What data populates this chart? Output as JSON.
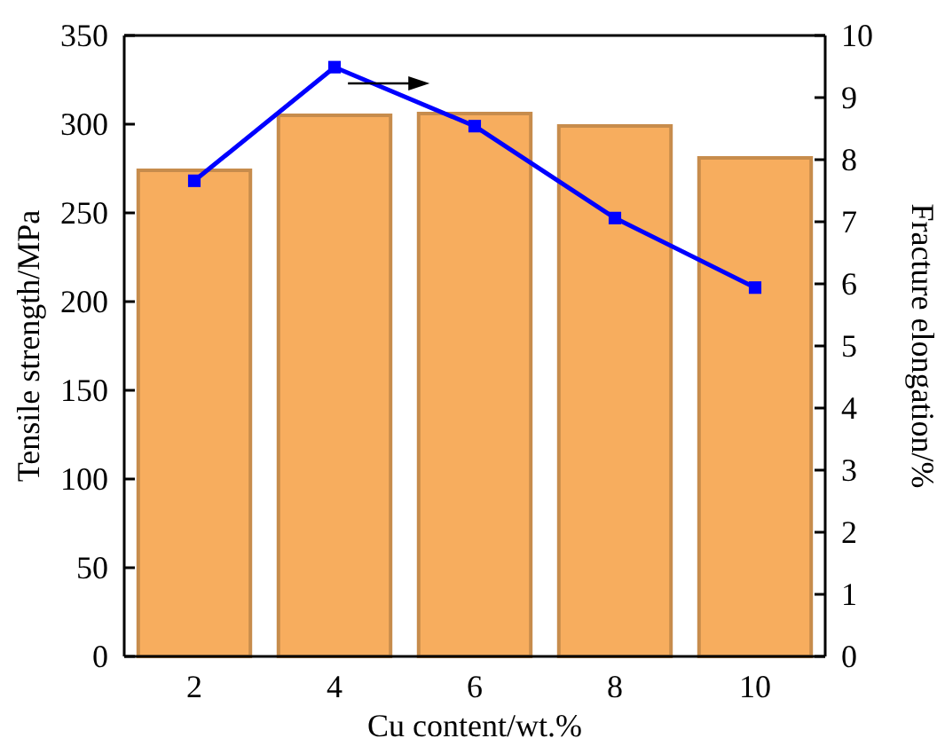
{
  "chart_data": {
    "type": "bar",
    "xlabel": "Cu content/wt.%",
    "ylabel": "Tensile strength/MPa",
    "y2label": "Fracture elongation/%",
    "categories": [
      "2",
      "4",
      "6",
      "8",
      "10"
    ],
    "series": [
      {
        "color": "#f7ad5e",
        "values": [
          274,
          305,
          306,
          299,
          281
        ]
      },
      {
        "type": "line",
        "axis": "y2",
        "color": "#0000ff",
        "values": [
          7.66,
          9.49,
          8.54,
          7.06,
          5.94
        ],
        "marker": "square"
      }
    ],
    "ylim": [
      0,
      350
    ],
    "yticks": [
      0,
      50,
      100,
      150,
      200,
      250,
      300,
      350
    ],
    "y2lim": [
      0,
      10
    ],
    "y2ticks": [
      0,
      1,
      2,
      3,
      4,
      5,
      6,
      7,
      8,
      9,
      10
    ],
    "grid": false
  }
}
